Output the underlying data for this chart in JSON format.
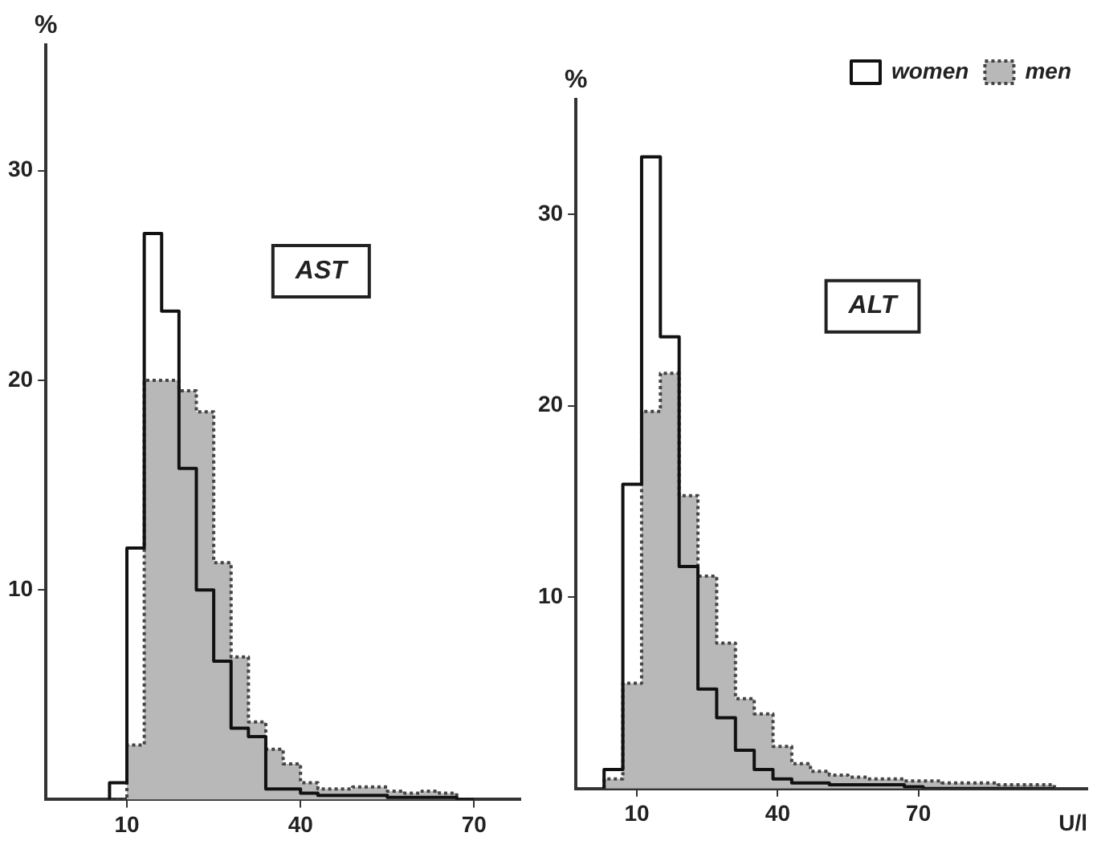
{
  "chart_data": [
    {
      "type": "histogram",
      "title": "AST",
      "ylabel": "%",
      "xlim": [
        -4,
        78
      ],
      "xticks": [
        10,
        40,
        70
      ],
      "ylim": [
        0,
        36
      ],
      "yticks": [
        10,
        20,
        30
      ],
      "grid": false,
      "bins": [
        7,
        10,
        13,
        16,
        19,
        22,
        25,
        28,
        31,
        34,
        37,
        40,
        43,
        46,
        49,
        52,
        55,
        58,
        61,
        64,
        67,
        70
      ],
      "series": [
        {
          "color": "#b8b8b8",
          "line_style": "dotted",
          "values": [
            0,
            2.6,
            20,
            20,
            19.5,
            18.5,
            11.3,
            6.8,
            3.7,
            2.4,
            1.7,
            0.8,
            0.5,
            0.5,
            0.6,
            0.6,
            0.4,
            0.3,
            0.4,
            0.3,
            0
          ]
        },
        {
          "color": "#111111",
          "line_style": "solid",
          "values": [
            0.8,
            12,
            27,
            23.3,
            15.8,
            10,
            6.6,
            3.4,
            3,
            0.5,
            0.5,
            0.3,
            0.2,
            0.2,
            0.2,
            0.2,
            0.1,
            0.1,
            0.1,
            0.1,
            0
          ]
        }
      ]
    },
    {
      "type": "histogram",
      "title": "ALT",
      "xlabel": "U/l",
      "ylabel": "%",
      "xlim": [
        -3,
        106
      ],
      "xticks": [
        10,
        40,
        70
      ],
      "ylim": [
        0,
        36
      ],
      "yticks": [
        10,
        20,
        30
      ],
      "grid": false,
      "legend": "top right",
      "bins": [
        3,
        7,
        11,
        15,
        19,
        23,
        27,
        31,
        35,
        39,
        43,
        47,
        51,
        55,
        59,
        63,
        67,
        71,
        75,
        79,
        83,
        87,
        91,
        95,
        99
      ],
      "series": [
        {
          "name": "men",
          "color": "#b8b8b8",
          "line_style": "dotted",
          "values": [
            0.5,
            5.5,
            19.7,
            21.7,
            15.3,
            11.1,
            7.6,
            4.7,
            3.9,
            2.2,
            1.3,
            0.9,
            0.7,
            0.6,
            0.5,
            0.5,
            0.4,
            0.4,
            0.3,
            0.3,
            0.3,
            0.2,
            0.2,
            0.2
          ]
        },
        {
          "name": "women",
          "color": "#111111",
          "line_style": "solid",
          "values": [
            1,
            15.9,
            33,
            23.6,
            11.6,
            5.2,
            3.7,
            2,
            1,
            0.5,
            0.3,
            0.3,
            0.2,
            0.2,
            0.2,
            0.2,
            0.1,
            0,
            0,
            0,
            0,
            0,
            0,
            0
          ]
        }
      ]
    }
  ]
}
